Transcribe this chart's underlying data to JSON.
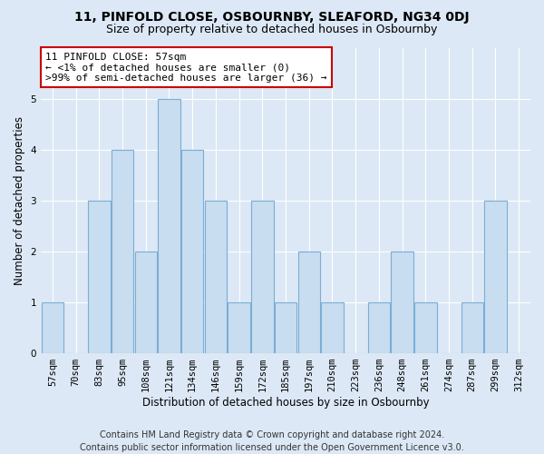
{
  "title_line1": "11, PINFOLD CLOSE, OSBOURNBY, SLEAFORD, NG34 0DJ",
  "title_line2": "Size of property relative to detached houses in Osbournby",
  "xlabel": "Distribution of detached houses by size in Osbournby",
  "ylabel": "Number of detached properties",
  "categories": [
    "57sqm",
    "70sqm",
    "83sqm",
    "95sqm",
    "108sqm",
    "121sqm",
    "134sqm",
    "146sqm",
    "159sqm",
    "172sqm",
    "185sqm",
    "197sqm",
    "210sqm",
    "223sqm",
    "236sqm",
    "248sqm",
    "261sqm",
    "274sqm",
    "287sqm",
    "299sqm",
    "312sqm"
  ],
  "values": [
    1,
    0,
    3,
    4,
    2,
    5,
    4,
    3,
    1,
    3,
    1,
    2,
    1,
    0,
    1,
    2,
    1,
    0,
    1,
    3,
    0
  ],
  "bar_color": "#c9ddf0",
  "bar_edge_color": "#7aadd4",
  "highlight_index": 0,
  "annotation_title": "11 PINFOLD CLOSE: 57sqm",
  "annotation_line1": "← <1% of detached houses are smaller (0)",
  "annotation_line2": ">99% of semi-detached houses are larger (36) →",
  "annotation_box_color": "#ffffff",
  "annotation_box_edge_color": "#cc0000",
  "ylim": [
    0,
    6
  ],
  "yticks": [
    0,
    1,
    2,
    3,
    4,
    5,
    6
  ],
  "background_color": "#dce8f5",
  "plot_background": "#dce8f5",
  "grid_color": "#ffffff",
  "footer_line1": "Contains HM Land Registry data © Crown copyright and database right 2024.",
  "footer_line2": "Contains public sector information licensed under the Open Government Licence v3.0.",
  "title_fontsize": 10,
  "subtitle_fontsize": 9,
  "axis_label_fontsize": 8.5,
  "tick_fontsize": 7.5,
  "annotation_fontsize": 8,
  "footer_fontsize": 7
}
